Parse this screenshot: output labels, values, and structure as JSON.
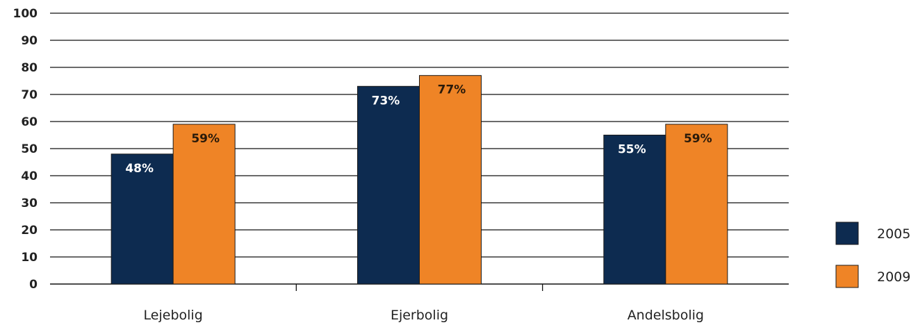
{
  "chart_data": {
    "type": "bar",
    "categories": [
      "Lejebolig",
      "Ejerbolig",
      "Andelsbolig"
    ],
    "series": [
      {
        "name": "2005",
        "values": [
          48,
          73,
          55
        ],
        "labels": [
          "48%",
          "73%",
          "55%"
        ],
        "color": "#0d2b50",
        "label_color": "#ffffff"
      },
      {
        "name": "2009",
        "values": [
          59,
          77,
          59
        ],
        "labels": [
          "59%",
          "77%",
          "59%"
        ],
        "color": "#ef8426",
        "label_color": "#2a1a0a"
      }
    ],
    "ylim": [
      0,
      100
    ],
    "yticks": [
      "0",
      "10",
      "20",
      "30",
      "40",
      "50",
      "60",
      "70",
      "80",
      "90",
      "100"
    ],
    "grid": true,
    "legend": "right",
    "title": "",
    "xlabel": "",
    "ylabel": ""
  }
}
